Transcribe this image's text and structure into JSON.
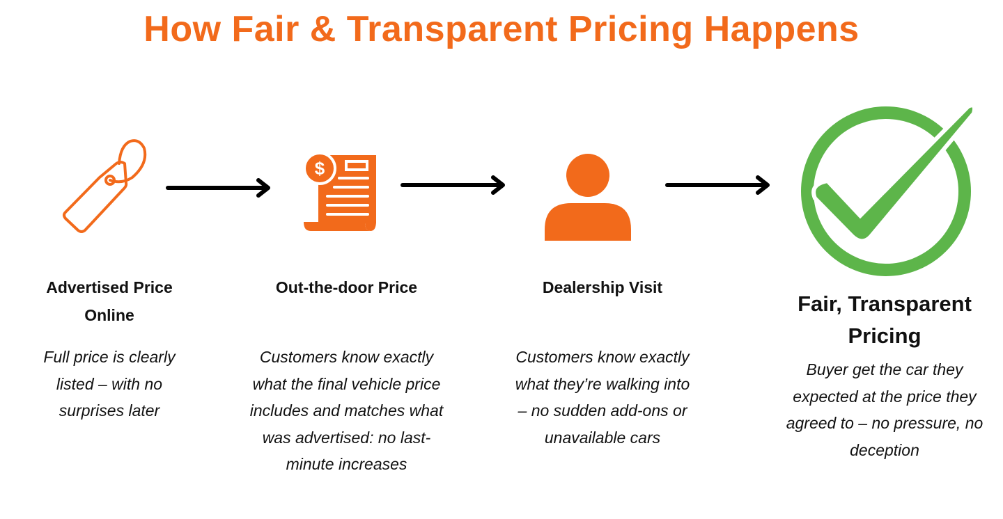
{
  "title": "How Fair & Transparent Pricing Happens",
  "colors": {
    "accent": "#f26a1b",
    "success": "#5db54a",
    "arrow": "#000000"
  },
  "steps": [
    {
      "icon": "price-tag-icon",
      "heading": "Advertised Price Online",
      "text": "Full price is clearly listed – with no surprises later"
    },
    {
      "icon": "receipt-dollar-icon",
      "heading": "Out-the-door Price",
      "text": "Customers know exactly what the final vehicle price includes and matches what was advertised: no last-minute increases"
    },
    {
      "icon": "person-icon",
      "heading": "Dealership Visit",
      "text": "Customers know exactly what they’re walking into – no sudden add-ons or unavailable cars"
    },
    {
      "icon": "checkmark-circle-icon",
      "heading": "Fair, Transparent Pricing",
      "text": "Buyer get the car they expected at the price they agreed to – no pressure, no deception"
    }
  ]
}
